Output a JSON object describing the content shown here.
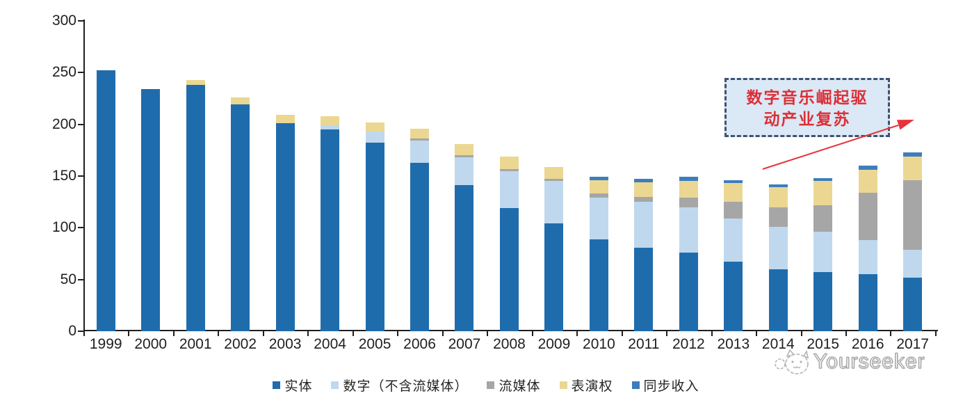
{
  "page": {
    "background": "#ffffff"
  },
  "chart_data": {
    "type": "bar",
    "stacked": true,
    "title": "",
    "xlabel": "",
    "ylabel": "",
    "ylim": [
      0,
      300
    ],
    "yticks": [
      0,
      50,
      100,
      150,
      200,
      250,
      300
    ],
    "grid": false,
    "legend_position": "bottom",
    "axis_color": "#1f1f1f",
    "categories": [
      "1999",
      "2000",
      "2001",
      "2002",
      "2003",
      "2004",
      "2005",
      "2006",
      "2007",
      "2008",
      "2009",
      "2010",
      "2011",
      "2012",
      "2013",
      "2014",
      "2015",
      "2016",
      "2017"
    ],
    "series": [
      {
        "name": "实体",
        "color": "#1f6cac",
        "values": [
          252,
          234,
          238,
          219,
          201,
          195,
          182,
          163,
          141,
          119,
          104,
          89,
          81,
          76,
          67,
          60,
          57,
          55,
          52
        ]
      },
      {
        "name": "数字（不含流媒体）",
        "color": "#bfd8ee",
        "values": [
          0,
          0,
          0,
          0,
          0,
          4,
          11,
          21,
          27,
          36,
          41,
          40,
          44,
          44,
          42,
          41,
          39,
          33,
          27
        ]
      },
      {
        "name": "流媒体",
        "color": "#a6a6a6",
        "values": [
          0,
          0,
          0,
          0,
          0,
          0,
          0,
          2,
          2,
          2,
          2,
          4,
          5,
          9,
          16,
          19,
          26,
          46,
          67
        ]
      },
      {
        "name": "表演权",
        "color": "#ebd792",
        "values": [
          0,
          0,
          5,
          7,
          8,
          9,
          9,
          10,
          11,
          12,
          12,
          13,
          14,
          16,
          18,
          19,
          23,
          22,
          23
        ]
      },
      {
        "name": "同步收入",
        "color": "#3d7ebd",
        "values": [
          0,
          0,
          0,
          0,
          0,
          0,
          0,
          0,
          0,
          0,
          0,
          3,
          3,
          4,
          3,
          3,
          3,
          4,
          4
        ]
      }
    ]
  },
  "annotation": {
    "line1": "数字音乐崛起驱",
    "line2": "动产业复苏",
    "text_color": "#dd2f36",
    "box_fill": "#dbe8f5",
    "box_border_color": "#3e5272",
    "arrow_color": "#e8333a"
  },
  "watermark": {
    "brand": "Yourseeker",
    "logo": "cat-face-logo"
  }
}
